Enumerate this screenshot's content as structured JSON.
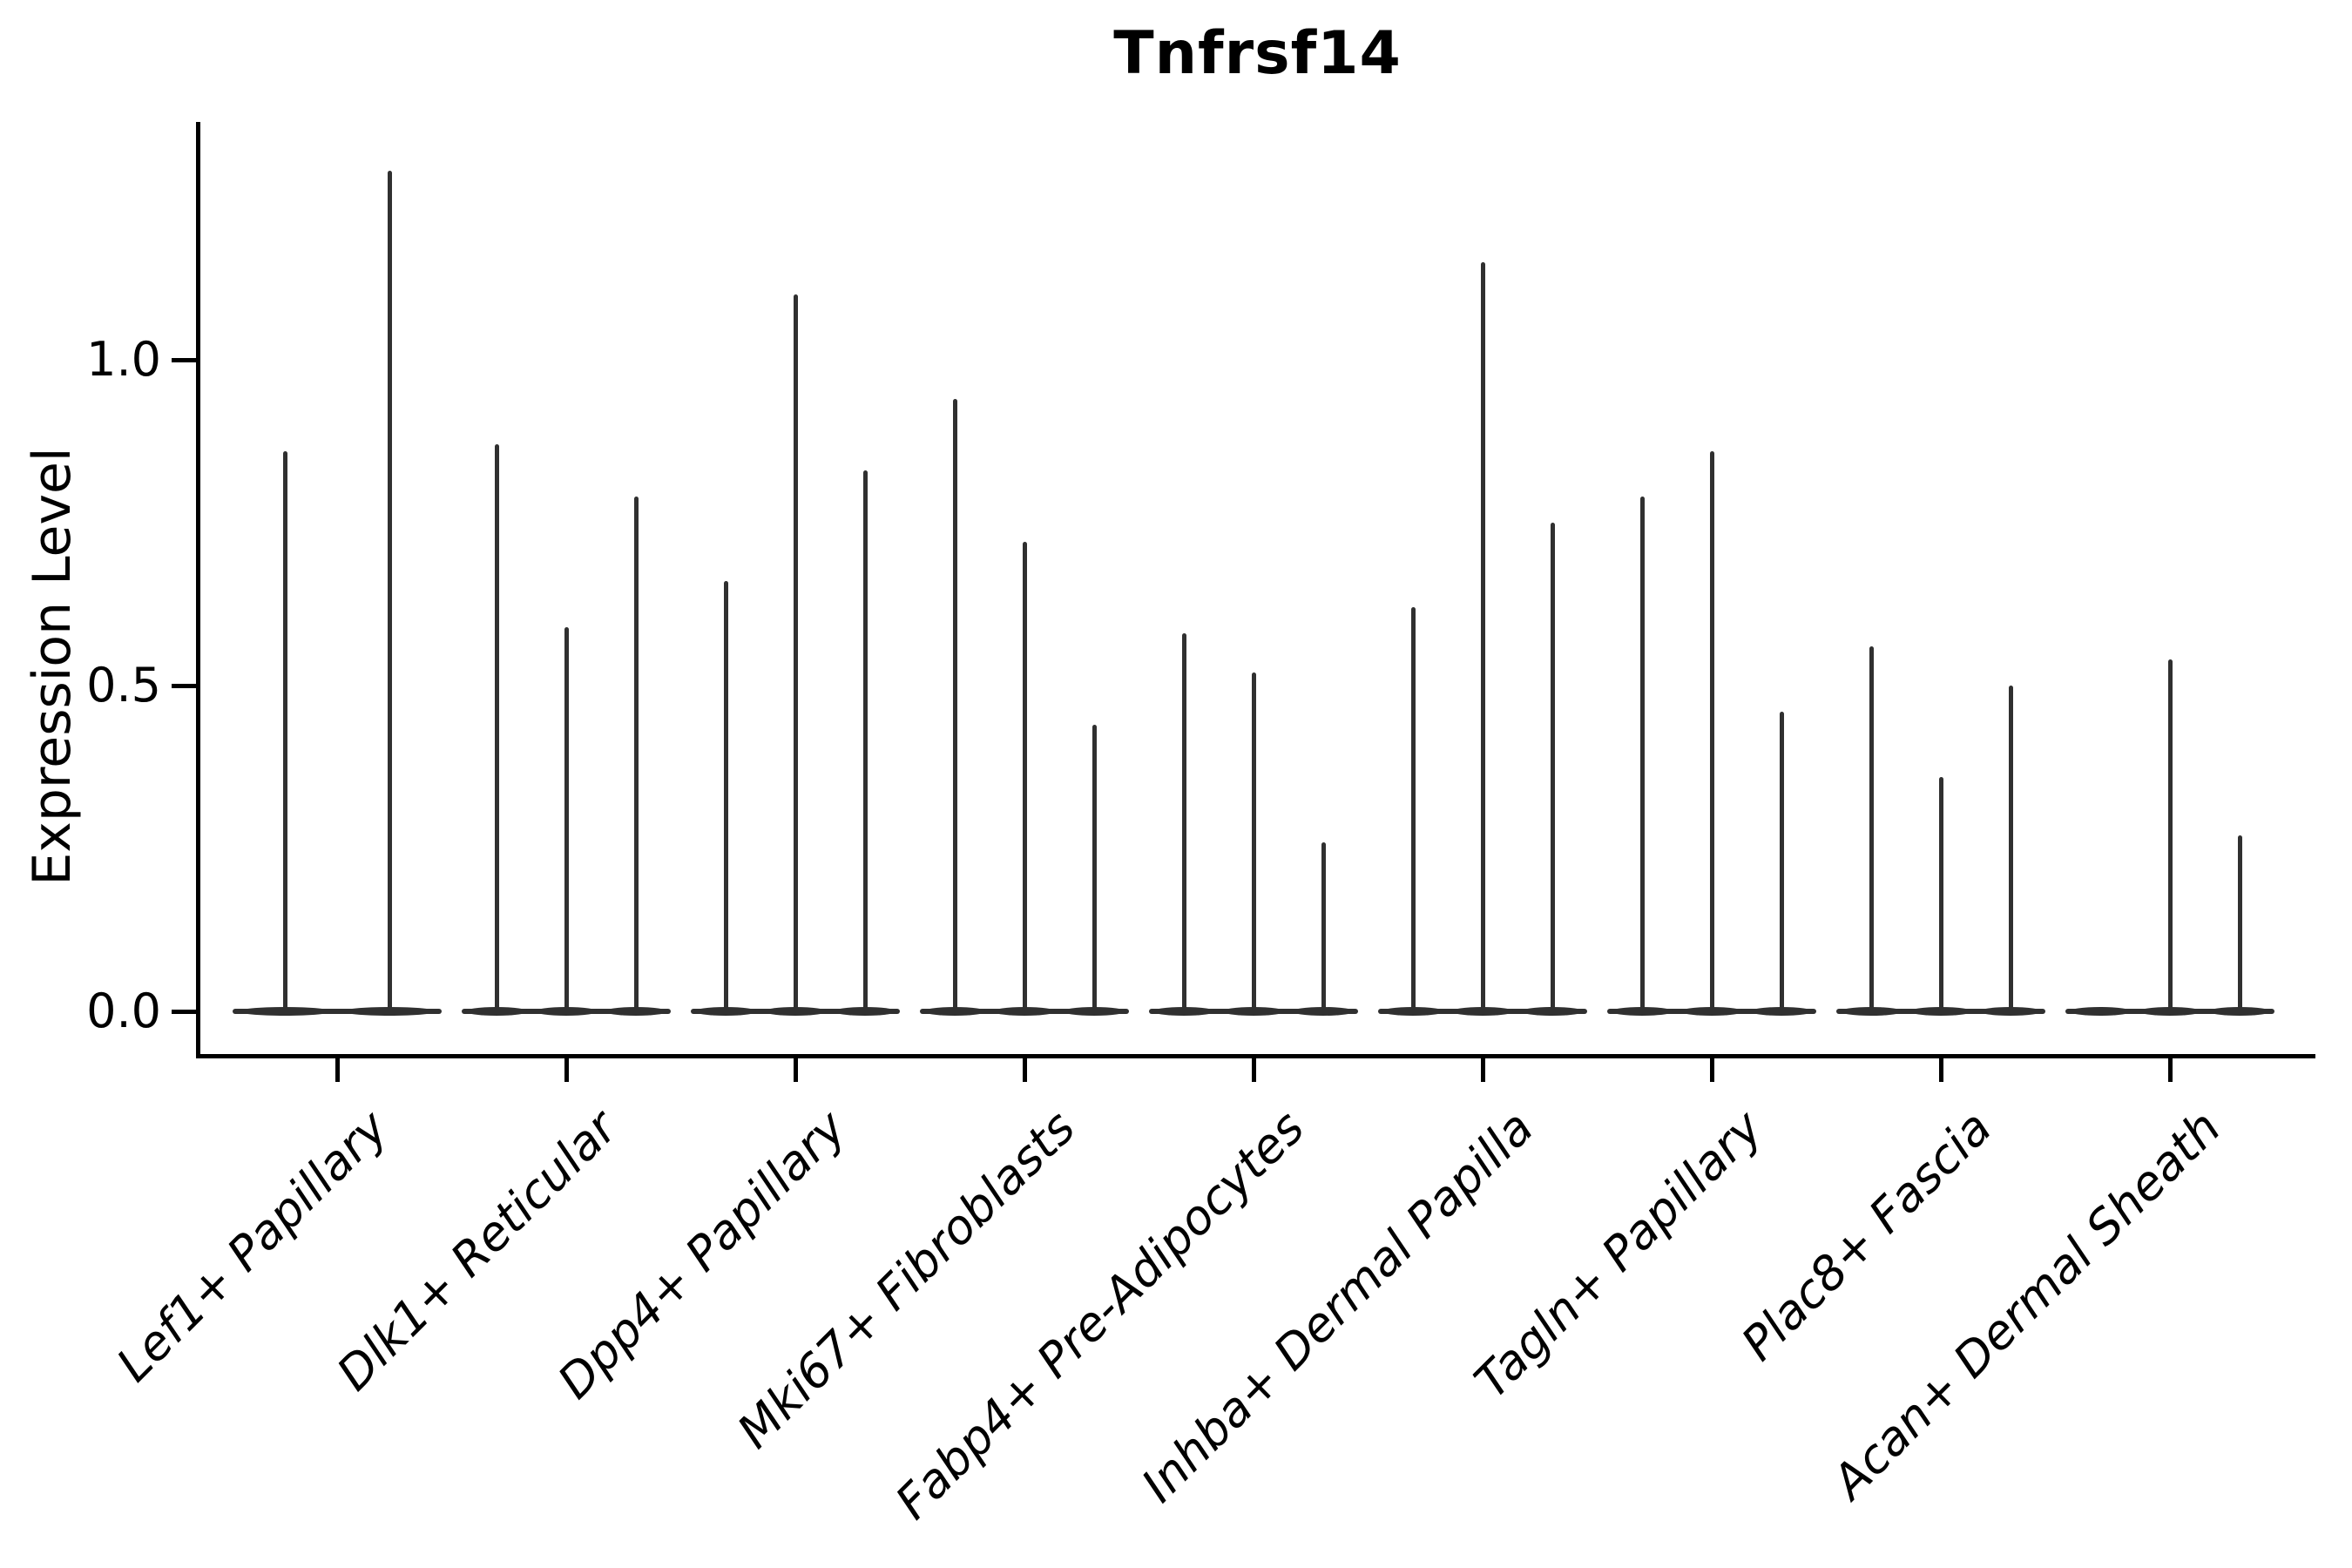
{
  "chart_data": {
    "type": "violin",
    "title": "Tnfrsf14",
    "ylabel": "Expression Level",
    "xlabel": "",
    "ytick_labels": [
      "0.0",
      "0.5",
      "1.0"
    ],
    "ytick_values": [
      0.0,
      0.5,
      1.0
    ],
    "ylim": [
      -0.07,
      1.37
    ],
    "grid": false,
    "legend": "none",
    "categories": [
      "Lef1+ Papillary",
      "Dlk1+ Reticular",
      "Dpp4+ Papillary",
      "Mki67+ Fibroblasts",
      "Fabp4+ Pre-Adipocytes",
      "Inhba+ Dermal Papilla",
      "Tagln+ Papillary",
      "Plac8+ Fascia",
      "Acan+ Dermal Sheath"
    ],
    "groups": [
      {
        "label": "Lef1+ Papillary",
        "violins": [
          {
            "offset": -60,
            "width": 120,
            "min": 0,
            "max": 0.86
          },
          {
            "offset": 60,
            "width": 120,
            "min": 0,
            "max": 1.29
          }
        ]
      },
      {
        "label": "Dlk1+ Reticular",
        "violins": [
          {
            "offset": -80,
            "width": 80,
            "min": 0,
            "max": 0.87
          },
          {
            "offset": 0,
            "width": 80,
            "min": 0,
            "max": 0.59
          },
          {
            "offset": 80,
            "width": 80,
            "min": 0,
            "max": 0.79
          }
        ]
      },
      {
        "label": "Dpp4+ Papillary",
        "violins": [
          {
            "offset": -80,
            "width": 80,
            "min": 0,
            "max": 0.66
          },
          {
            "offset": 0,
            "width": 80,
            "min": 0,
            "max": 1.1
          },
          {
            "offset": 80,
            "width": 80,
            "min": 0,
            "max": 0.83
          }
        ]
      },
      {
        "label": "Mki67+ Fibroblasts",
        "violins": [
          {
            "offset": -80,
            "width": 80,
            "min": 0,
            "max": 0.94
          },
          {
            "offset": 0,
            "width": 80,
            "min": 0,
            "max": 0.72
          },
          {
            "offset": 80,
            "width": 80,
            "min": 0,
            "max": 0.44
          }
        ]
      },
      {
        "label": "Fabp4+ Pre-Adipocytes",
        "violins": [
          {
            "offset": -80,
            "width": 80,
            "min": 0,
            "max": 0.58
          },
          {
            "offset": 0,
            "width": 80,
            "min": 0,
            "max": 0.52
          },
          {
            "offset": 80,
            "width": 80,
            "min": 0,
            "max": 0.26
          }
        ]
      },
      {
        "label": "Inhba+ Dermal Papilla",
        "violins": [
          {
            "offset": -80,
            "width": 80,
            "min": 0,
            "max": 0.62
          },
          {
            "offset": 0,
            "width": 80,
            "min": 0,
            "max": 1.15
          },
          {
            "offset": 80,
            "width": 80,
            "min": 0,
            "max": 0.75
          }
        ]
      },
      {
        "label": "Tagln+ Papillary",
        "violins": [
          {
            "offset": -80,
            "width": 80,
            "min": 0,
            "max": 0.79
          },
          {
            "offset": 0,
            "width": 80,
            "min": 0,
            "max": 0.86
          },
          {
            "offset": 80,
            "width": 80,
            "min": 0,
            "max": 0.46
          }
        ]
      },
      {
        "label": "Plac8+ Fascia",
        "violins": [
          {
            "offset": -80,
            "width": 80,
            "min": 0,
            "max": 0.56
          },
          {
            "offset": 0,
            "width": 80,
            "min": 0,
            "max": 0.36
          },
          {
            "offset": 80,
            "width": 80,
            "min": 0,
            "max": 0.5
          }
        ]
      },
      {
        "label": "Acan+ Dermal Sheath",
        "violins": [
          {
            "offset": -80,
            "width": 80,
            "min": 0,
            "max": 0.0
          },
          {
            "offset": 0,
            "width": 80,
            "min": 0,
            "max": 0.54
          },
          {
            "offset": 80,
            "width": 80,
            "min": 0,
            "max": 0.27
          }
        ]
      }
    ]
  },
  "colors": {
    "violin": "#303030",
    "axis": "#000000",
    "text": "#000000",
    "background": "#ffffff"
  }
}
